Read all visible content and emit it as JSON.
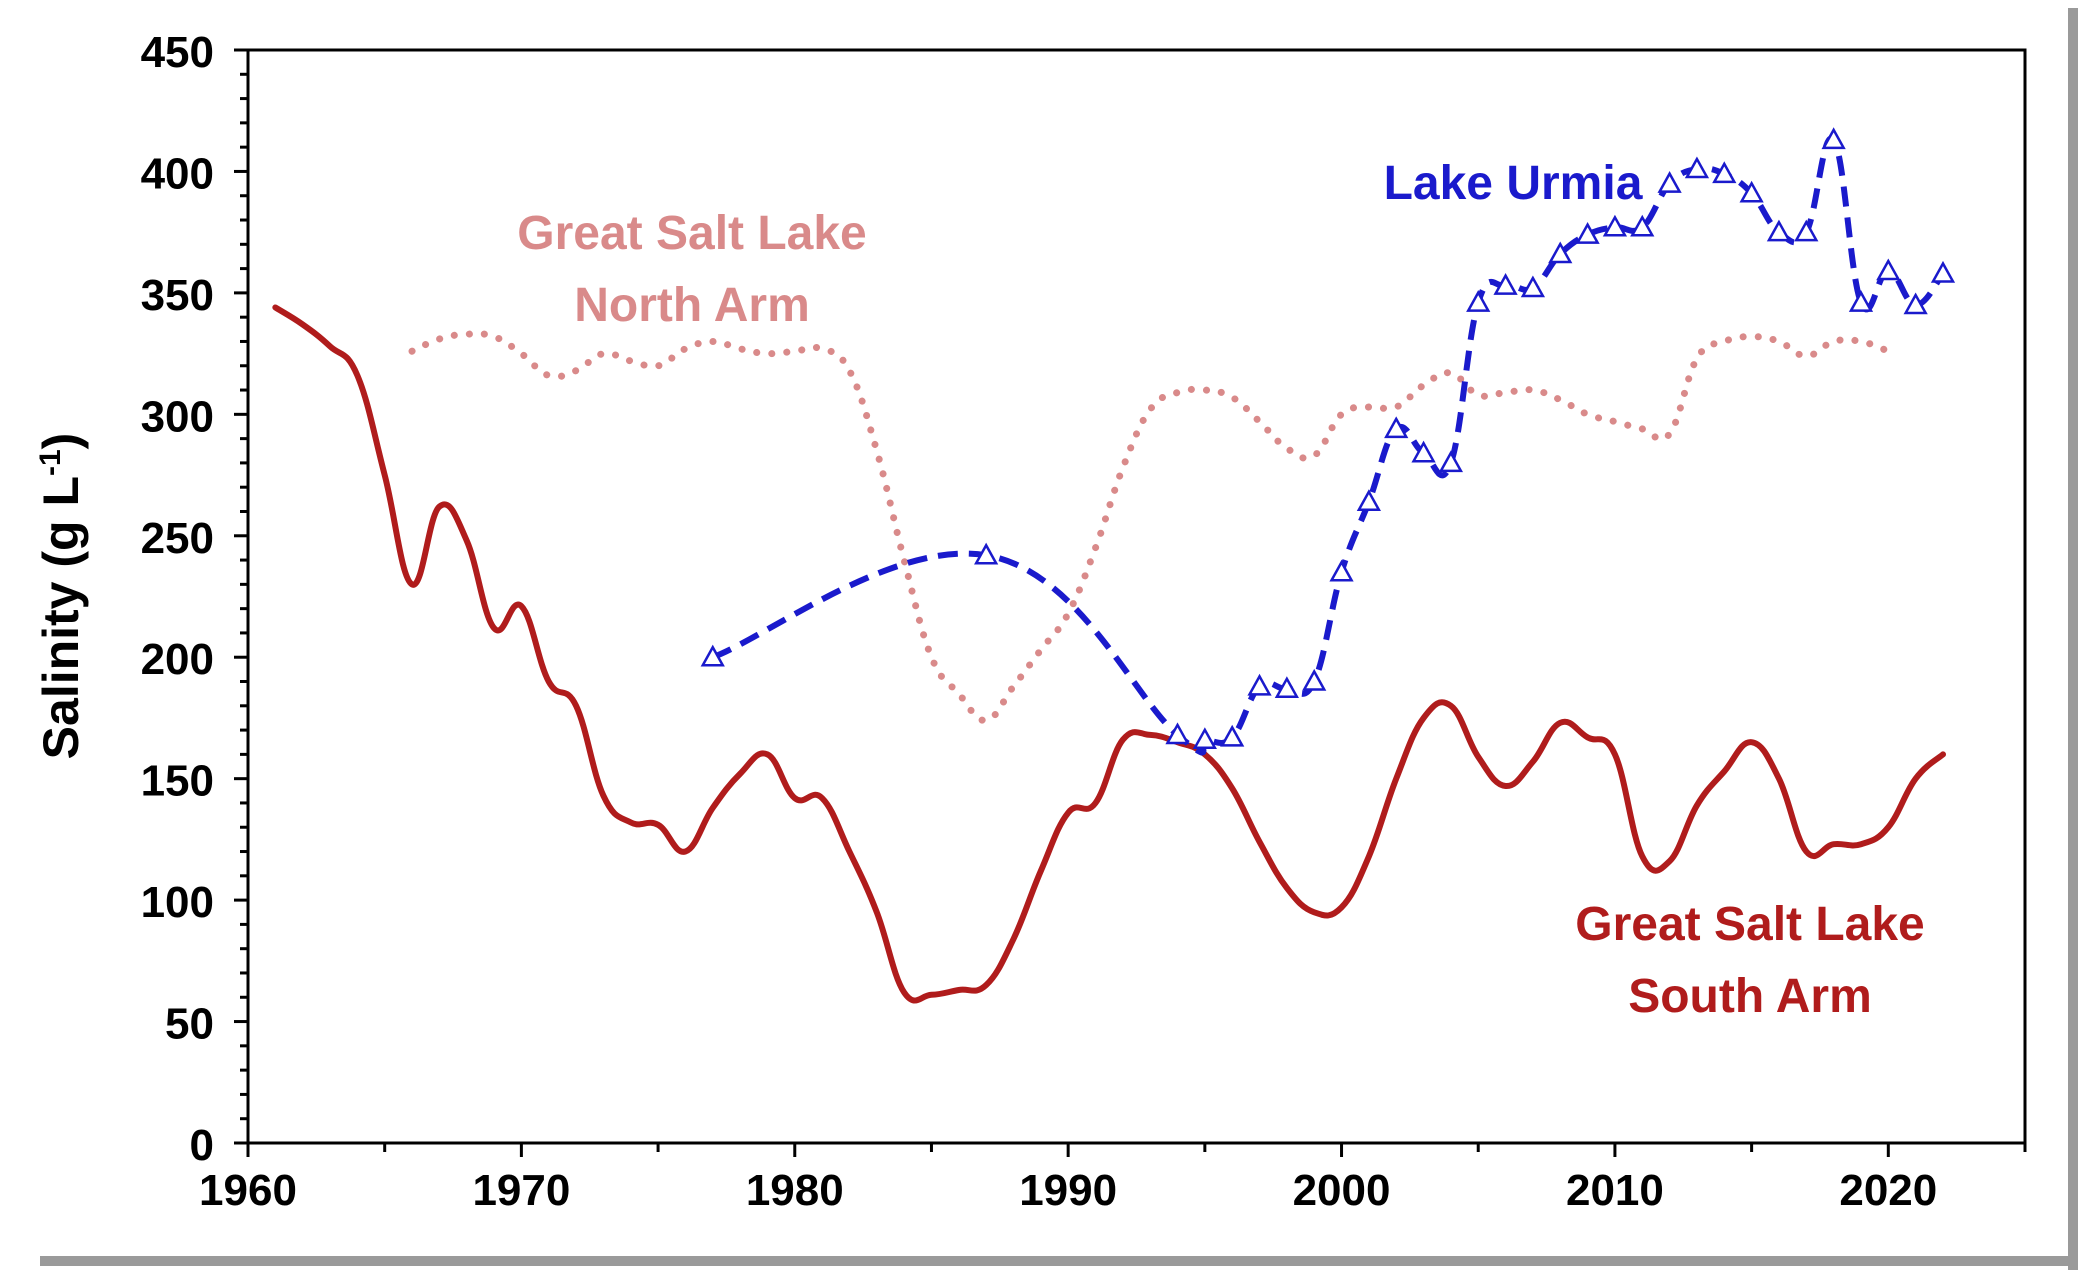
{
  "chart_data": {
    "type": "line",
    "title": "",
    "xlabel": "",
    "ylabel": "Salinity  (g L",
    "ylabel_superscript": "-1",
    "ylabel_suffix": ")",
    "xlim": [
      1960,
      2025
    ],
    "ylim": [
      0,
      450
    ],
    "x_ticks": [
      1960,
      1970,
      1980,
      1990,
      2000,
      2010,
      2020
    ],
    "y_ticks": [
      0,
      50,
      100,
      150,
      200,
      250,
      300,
      350,
      400,
      450
    ],
    "grid": false,
    "series": [
      {
        "name": "Great Salt Lake South Arm",
        "label_lines": [
          "Great Salt Lake",
          "South Arm"
        ],
        "color": "#b01c1c",
        "style": "solid",
        "marker": "none",
        "x": [
          1961,
          1962,
          1963,
          1964,
          1965,
          1966,
          1967,
          1968,
          1969,
          1970,
          1971,
          1972,
          1973,
          1974,
          1975,
          1976,
          1977,
          1978,
          1979,
          1980,
          1981,
          1982,
          1983,
          1984,
          1985,
          1986,
          1987,
          1988,
          1989,
          1990,
          1991,
          1992,
          1993,
          1994,
          1995,
          1996,
          1997,
          1998,
          1999,
          2000,
          2001,
          2002,
          2003,
          2004,
          2005,
          2006,
          2007,
          2008,
          2009,
          2010,
          2011,
          2012,
          2013,
          2014,
          2015,
          2016,
          2017,
          2018,
          2019,
          2020,
          2021,
          2022
        ],
        "values": [
          344,
          337,
          328,
          316,
          275,
          230,
          262,
          248,
          212,
          221,
          190,
          180,
          143,
          132,
          131,
          120,
          138,
          152,
          160,
          142,
          142,
          120,
          95,
          62,
          61,
          63,
          65,
          84,
          112,
          136,
          140,
          166,
          168,
          165,
          160,
          146,
          124,
          105,
          95,
          97,
          118,
          150,
          175,
          180,
          159,
          147,
          157,
          173,
          167,
          160,
          118,
          116,
          139,
          153,
          165,
          150,
          120,
          123,
          123,
          130,
          150,
          160
        ]
      },
      {
        "name": "Great Salt Lake North Arm",
        "label_lines": [
          "Great Salt Lake",
          "North Arm"
        ],
        "color": "#d98a8a",
        "style": "dotted",
        "marker": "none",
        "x": [
          1966,
          1967,
          1968,
          1969,
          1970,
          1971,
          1972,
          1973,
          1974,
          1975,
          1976,
          1977,
          1978,
          1979,
          1980,
          1981,
          1982,
          1983,
          1984,
          1985,
          1986,
          1987,
          1988,
          1989,
          1990,
          1991,
          1992,
          1993,
          1994,
          1995,
          1996,
          1997,
          1998,
          1999,
          2000,
          2001,
          2002,
          2003,
          2004,
          2005,
          2006,
          2007,
          2008,
          2009,
          2010,
          2011,
          2012,
          2013,
          2014,
          2015,
          2016,
          2017,
          2018,
          2019,
          2020
        ],
        "values": [
          326,
          331,
          333,
          332,
          325,
          316,
          318,
          325,
          322,
          320,
          327,
          330,
          327,
          325,
          326,
          327,
          318,
          285,
          240,
          200,
          185,
          174,
          188,
          203,
          218,
          245,
          278,
          302,
          309,
          310,
          307,
          297,
          286,
          283,
          300,
          303,
          303,
          312,
          317,
          308,
          309,
          310,
          306,
          300,
          297,
          294,
          292,
          323,
          330,
          332,
          330,
          324,
          330,
          330,
          326
        ]
      },
      {
        "name": "Lake Urmia",
        "label_lines": [
          "Lake Urmia"
        ],
        "color": "#1a1acc",
        "style": "dashed",
        "marker": "triangle",
        "x": [
          1977,
          1987,
          1994,
          1995,
          1996,
          1997,
          1998,
          1999,
          2000,
          2001,
          2002,
          2003,
          2004,
          2005,
          2006,
          2007,
          2008,
          2009,
          2010,
          2011,
          2012,
          2013,
          2014,
          2015,
          2016,
          2017,
          2018,
          2019,
          2020,
          2021,
          2022
        ],
        "values": [
          200,
          242,
          168,
          166,
          167,
          188,
          187,
          190,
          235,
          264,
          294,
          284,
          280,
          346,
          353,
          352,
          366,
          374,
          377,
          377,
          395,
          401,
          399,
          391,
          375,
          375,
          413,
          346,
          359,
          345,
          358
        ]
      }
    ]
  }
}
